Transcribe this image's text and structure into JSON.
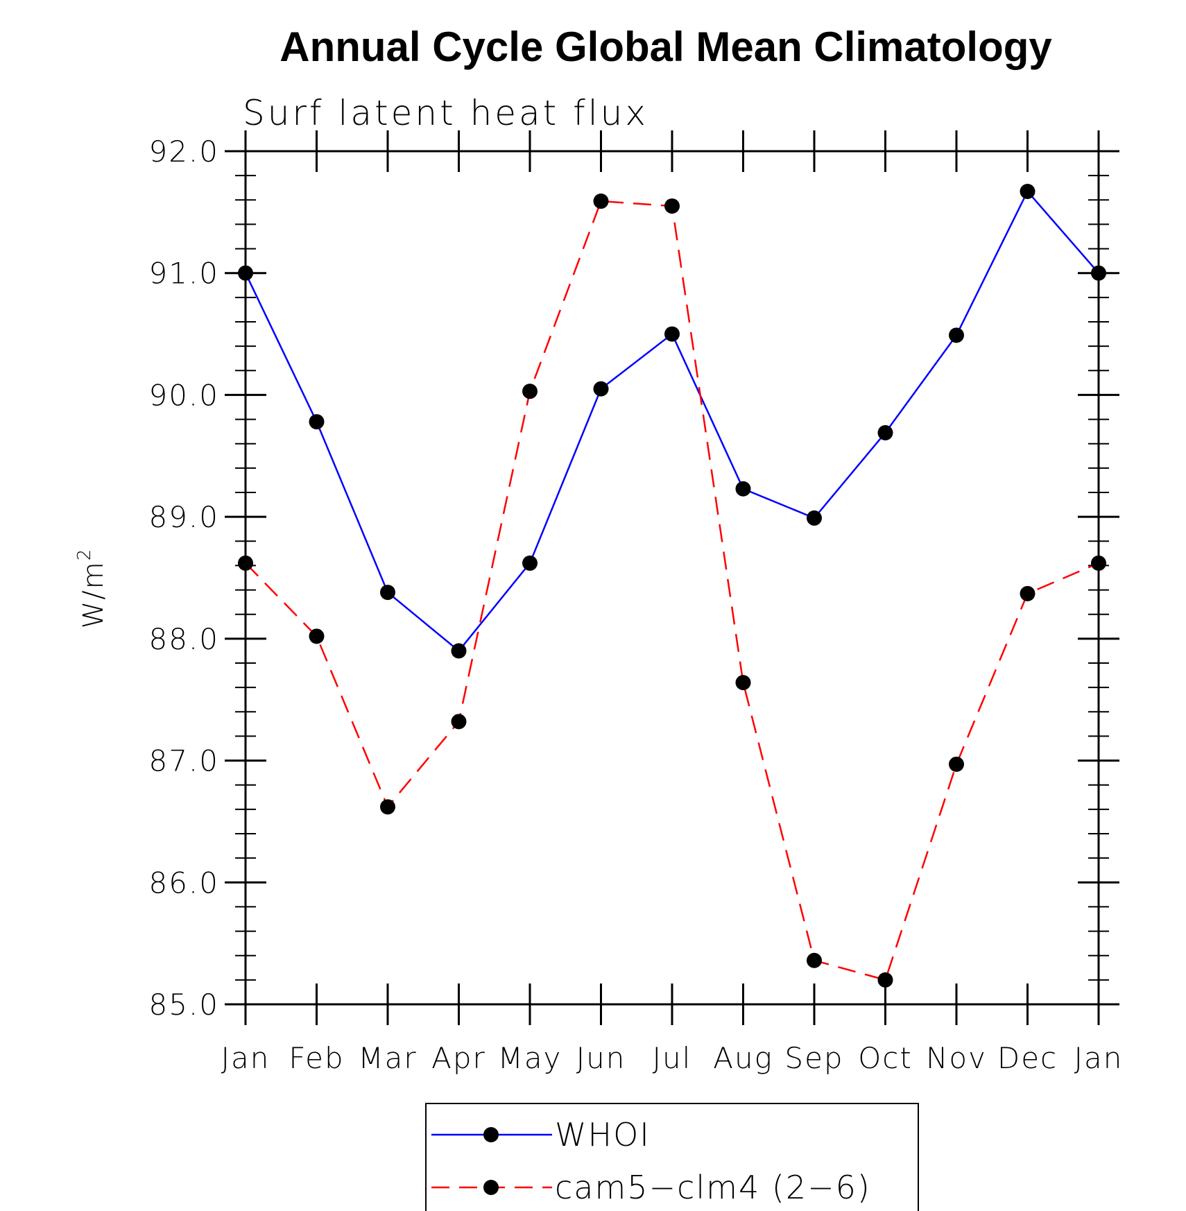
{
  "chart_data": {
    "type": "line",
    "title": "Annual Cycle Global Mean Climatology",
    "subtitle": "Surf latent heat flux",
    "ylabel_base": "W/m",
    "ylabel_sup": "2",
    "xlabel": "",
    "categories": [
      "Jan",
      "Feb",
      "Mar",
      "Apr",
      "May",
      "Jun",
      "Jul",
      "Aug",
      "Sep",
      "Oct",
      "Nov",
      "Dec",
      "Jan"
    ],
    "ylim": [
      85.0,
      92.0
    ],
    "yticks": [
      85.0,
      86.0,
      87.0,
      88.0,
      89.0,
      90.0,
      91.0,
      92.0
    ],
    "ytick_labels": [
      "85.0",
      "86.0",
      "87.0",
      "88.0",
      "89.0",
      "90.0",
      "91.0",
      "92.0"
    ],
    "series": [
      {
        "name": "WHOI",
        "color": "#0000ff",
        "dash": "solid",
        "values": [
          91.0,
          89.78,
          88.38,
          87.9,
          88.62,
          90.05,
          90.5,
          89.23,
          88.99,
          89.69,
          90.49,
          91.67,
          91.0
        ]
      },
      {
        "name": "cam5−clm4 (2−6)",
        "color": "#ff0000",
        "dash": "dashed",
        "values": [
          88.62,
          88.02,
          86.62,
          87.32,
          90.03,
          91.59,
          91.55,
          87.64,
          85.36,
          85.2,
          86.97,
          88.37,
          88.62
        ]
      }
    ],
    "legend_position": "bottom-center",
    "grid": false
  }
}
